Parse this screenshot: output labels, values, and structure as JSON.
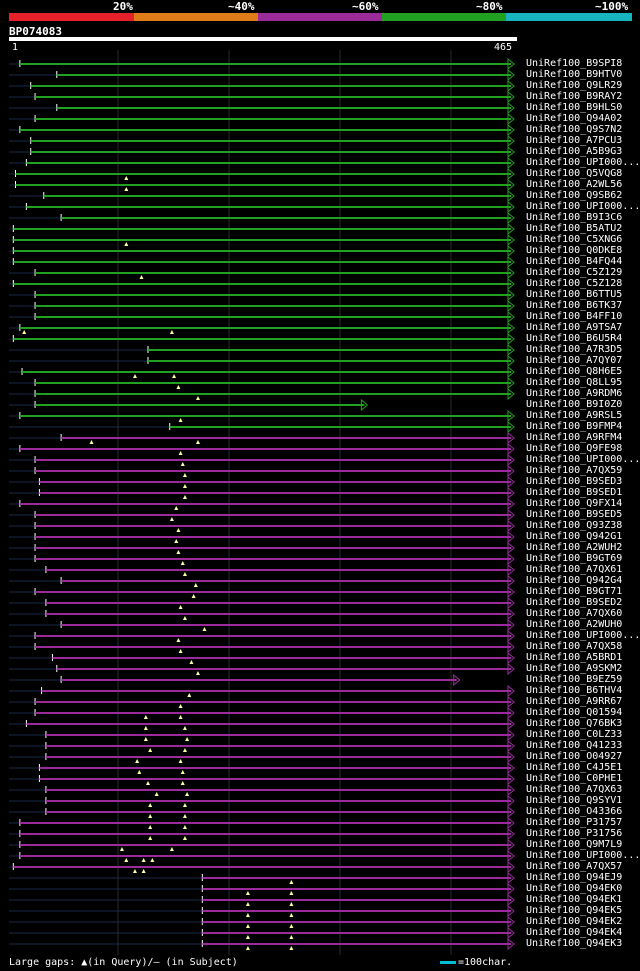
{
  "legend": {
    "labels": [
      "20%",
      "~40%",
      "~60%",
      "~80%",
      "~100%"
    ],
    "colors": [
      "#e8202a",
      "#e07b1a",
      "#9b2a9b",
      "#22a022",
      "#16b5c0"
    ]
  },
  "query": {
    "name": "BP074083",
    "start": "1",
    "end": "465",
    "length": 465
  },
  "hits": [
    {
      "label": "UniRef100_B9SPI8",
      "color": "green",
      "start": 10,
      "end": 465,
      "gaps": []
    },
    {
      "label": "UniRef100_B9HTV0",
      "color": "green",
      "start": 44,
      "end": 465,
      "gaps": []
    },
    {
      "label": "UniRef100_Q9LR29",
      "color": "green",
      "start": 20,
      "end": 465,
      "gaps": []
    },
    {
      "label": "UniRef100_B9RAY2",
      "color": "green",
      "start": 24,
      "end": 465,
      "gaps": []
    },
    {
      "label": "UniRef100_B9HLS0",
      "color": "green",
      "start": 44,
      "end": 465,
      "gaps": []
    },
    {
      "label": "UniRef100_Q94A02",
      "color": "green",
      "start": 24,
      "end": 465,
      "gaps": []
    },
    {
      "label": "UniRef100_Q9S7N2",
      "color": "green",
      "start": 10,
      "end": 465,
      "gaps": []
    },
    {
      "label": "UniRef100_A7PCU3",
      "color": "green",
      "start": 20,
      "end": 465,
      "gaps": []
    },
    {
      "label": "UniRef100_A5B9G3",
      "color": "green",
      "start": 20,
      "end": 465,
      "gaps": []
    },
    {
      "label": "UniRef100_UPI000...",
      "color": "green",
      "start": 16,
      "end": 465,
      "gaps": []
    },
    {
      "label": "UniRef100_Q5VQG8",
      "color": "green",
      "start": 6,
      "end": 465,
      "gaps": [
        108
      ]
    },
    {
      "label": "UniRef100_A2WL56",
      "color": "green",
      "start": 6,
      "end": 465,
      "gaps": [
        108
      ]
    },
    {
      "label": "UniRef100_Q9SB62",
      "color": "green",
      "start": 32,
      "end": 465,
      "gaps": []
    },
    {
      "label": "UniRef100_UPI000...",
      "color": "green",
      "start": 16,
      "end": 465,
      "gaps": []
    },
    {
      "label": "UniRef100_B9I3C6",
      "color": "green",
      "start": 48,
      "end": 465,
      "gaps": []
    },
    {
      "label": "UniRef100_B5ATU2",
      "color": "green",
      "start": 4,
      "end": 465,
      "gaps": []
    },
    {
      "label": "UniRef100_C5XNG6",
      "color": "green",
      "start": 4,
      "end": 465,
      "gaps": [
        108
      ]
    },
    {
      "label": "UniRef100_Q0DKE8",
      "color": "green",
      "start": 4,
      "end": 465,
      "gaps": []
    },
    {
      "label": "UniRef100_B4FQ44",
      "color": "green",
      "start": 4,
      "end": 465,
      "gaps": []
    },
    {
      "label": "UniRef100_C5Z129",
      "color": "green",
      "start": 24,
      "end": 465,
      "gaps": [
        122
      ]
    },
    {
      "label": "UniRef100_C5Z128",
      "color": "green",
      "start": 4,
      "end": 465,
      "gaps": []
    },
    {
      "label": "UniRef100_B6TTU5",
      "color": "green",
      "start": 24,
      "end": 465,
      "gaps": []
    },
    {
      "label": "UniRef100_B6TK37",
      "color": "green",
      "start": 24,
      "end": 465,
      "gaps": []
    },
    {
      "label": "UniRef100_B4FF10",
      "color": "green",
      "start": 24,
      "end": 465,
      "gaps": []
    },
    {
      "label": "UniRef100_A9TSA7",
      "color": "green",
      "start": 10,
      "end": 465,
      "gaps": [
        14,
        150
      ]
    },
    {
      "label": "UniRef100_B6U5R4",
      "color": "green",
      "start": 4,
      "end": 465,
      "gaps": []
    },
    {
      "label": "UniRef100_A7R3D5",
      "color": "green",
      "start": 128,
      "end": 465,
      "gaps": []
    },
    {
      "label": "UniRef100_A7QY07",
      "color": "green",
      "start": 128,
      "end": 465,
      "gaps": []
    },
    {
      "label": "UniRef100_Q8H6E5",
      "color": "green",
      "start": 12,
      "end": 465,
      "gaps": [
        116,
        152
      ]
    },
    {
      "label": "UniRef100_Q8LL95",
      "color": "green",
      "start": 24,
      "end": 465,
      "gaps": [
        156
      ]
    },
    {
      "label": "UniRef100_A9RDM6",
      "color": "green",
      "start": 24,
      "end": 465,
      "gaps": [
        174
      ]
    },
    {
      "label": "UniRef100_B9I0Z0",
      "color": "green",
      "start": 24,
      "end": 330,
      "gaps": []
    },
    {
      "label": "UniRef100_A9RSL5",
      "color": "green",
      "start": 10,
      "end": 465,
      "gaps": [
        158
      ]
    },
    {
      "label": "UniRef100_B9FMP4",
      "color": "green",
      "start": 148,
      "end": 465,
      "gaps": []
    },
    {
      "label": "UniRef100_A9RFM4",
      "color": "magenta",
      "start": 48,
      "end": 465,
      "gaps": [
        76,
        174
      ]
    },
    {
      "label": "UniRef100_Q9FE98",
      "color": "magenta",
      "start": 10,
      "end": 465,
      "gaps": [
        158
      ]
    },
    {
      "label": "UniRef100_UPI000...",
      "color": "magenta",
      "start": 24,
      "end": 465,
      "gaps": [
        160
      ]
    },
    {
      "label": "UniRef100_A7QX59",
      "color": "magenta",
      "start": 24,
      "end": 465,
      "gaps": [
        162
      ]
    },
    {
      "label": "UniRef100_B9SED3",
      "color": "magenta",
      "start": 28,
      "end": 465,
      "gaps": [
        162
      ]
    },
    {
      "label": "UniRef100_B9SED1",
      "color": "magenta",
      "start": 28,
      "end": 465,
      "gaps": [
        162
      ]
    },
    {
      "label": "UniRef100_Q9FX14",
      "color": "magenta",
      "start": 10,
      "end": 465,
      "gaps": [
        154
      ]
    },
    {
      "label": "UniRef100_B9SED5",
      "color": "magenta",
      "start": 24,
      "end": 465,
      "gaps": [
        150
      ]
    },
    {
      "label": "UniRef100_Q93Z38",
      "color": "magenta",
      "start": 24,
      "end": 465,
      "gaps": [
        156
      ]
    },
    {
      "label": "UniRef100_Q942G1",
      "color": "magenta",
      "start": 24,
      "end": 465,
      "gaps": [
        154
      ]
    },
    {
      "label": "UniRef100_A2WUH2",
      "color": "magenta",
      "start": 24,
      "end": 465,
      "gaps": [
        156
      ]
    },
    {
      "label": "UniRef100_B9GT69",
      "color": "magenta",
      "start": 24,
      "end": 465,
      "gaps": [
        160
      ]
    },
    {
      "label": "UniRef100_A7QX61",
      "color": "magenta",
      "start": 34,
      "end": 465,
      "gaps": [
        162
      ]
    },
    {
      "label": "UniRef100_Q942G4",
      "color": "magenta",
      "start": 48,
      "end": 465,
      "gaps": [
        172
      ]
    },
    {
      "label": "UniRef100_B9GT71",
      "color": "magenta",
      "start": 24,
      "end": 465,
      "gaps": [
        170
      ]
    },
    {
      "label": "UniRef100_B9SED2",
      "color": "magenta",
      "start": 34,
      "end": 465,
      "gaps": [
        158
      ]
    },
    {
      "label": "UniRef100_A7QX60",
      "color": "magenta",
      "start": 34,
      "end": 465,
      "gaps": [
        162
      ]
    },
    {
      "label": "UniRef100_A2WUH0",
      "color": "magenta",
      "start": 48,
      "end": 465,
      "gaps": [
        180
      ]
    },
    {
      "label": "UniRef100_UPI000...",
      "color": "magenta",
      "start": 24,
      "end": 465,
      "gaps": [
        156
      ]
    },
    {
      "label": "UniRef100_A7QX58",
      "color": "magenta",
      "start": 24,
      "end": 465,
      "gaps": [
        158
      ]
    },
    {
      "label": "UniRef100_A5BRD1",
      "color": "magenta",
      "start": 40,
      "end": 465,
      "gaps": [
        168
      ]
    },
    {
      "label": "UniRef100_A9SKM2",
      "color": "magenta",
      "start": 44,
      "end": 465,
      "gaps": [
        174
      ]
    },
    {
      "label": "UniRef100_B9EZ59",
      "color": "magenta",
      "start": 48,
      "end": 415,
      "gaps": []
    },
    {
      "label": "UniRef100_B6THV4",
      "color": "magenta",
      "start": 30,
      "end": 465,
      "gaps": [
        166
      ]
    },
    {
      "label": "UniRef100_A9RR67",
      "color": "magenta",
      "start": 24,
      "end": 465,
      "gaps": [
        158
      ]
    },
    {
      "label": "UniRef100_Q01594",
      "color": "magenta",
      "start": 24,
      "end": 465,
      "gaps": [
        126,
        158
      ]
    },
    {
      "label": "UniRef100_Q76BK3",
      "color": "magenta",
      "start": 16,
      "end": 465,
      "gaps": [
        126,
        162
      ]
    },
    {
      "label": "UniRef100_C0LZ33",
      "color": "magenta",
      "start": 34,
      "end": 465,
      "gaps": [
        126,
        164
      ]
    },
    {
      "label": "UniRef100_Q41233",
      "color": "magenta",
      "start": 34,
      "end": 465,
      "gaps": [
        130,
        162
      ]
    },
    {
      "label": "UniRef100_O04927",
      "color": "magenta",
      "start": 34,
      "end": 465,
      "gaps": [
        118,
        158
      ]
    },
    {
      "label": "UniRef100_C4J5E1",
      "color": "magenta",
      "start": 28,
      "end": 465,
      "gaps": [
        120,
        160
      ]
    },
    {
      "label": "UniRef100_C0PHE1",
      "color": "magenta",
      "start": 28,
      "end": 465,
      "gaps": [
        128,
        160
      ]
    },
    {
      "label": "UniRef100_A7QX63",
      "color": "magenta",
      "start": 34,
      "end": 465,
      "gaps": [
        136,
        164
      ]
    },
    {
      "label": "UniRef100_Q9SYV1",
      "color": "magenta",
      "start": 34,
      "end": 465,
      "gaps": [
        130,
        162
      ]
    },
    {
      "label": "UniRef100_O43366",
      "color": "magenta",
      "start": 34,
      "end": 465,
      "gaps": [
        130,
        162
      ]
    },
    {
      "label": "UniRef100_P31757",
      "color": "magenta",
      "start": 10,
      "end": 465,
      "gaps": [
        130,
        162
      ]
    },
    {
      "label": "UniRef100_P31756",
      "color": "magenta",
      "start": 10,
      "end": 465,
      "gaps": [
        130,
        162
      ]
    },
    {
      "label": "UniRef100_Q9M7L9",
      "color": "magenta",
      "start": 10,
      "end": 465,
      "gaps": [
        104,
        150
      ]
    },
    {
      "label": "UniRef100_UPI000...",
      "color": "magenta",
      "start": 10,
      "end": 465,
      "gaps": [
        108,
        124,
        132
      ]
    },
    {
      "label": "UniRef100_A7QX57",
      "color": "magenta",
      "start": 4,
      "end": 465,
      "gaps": [
        116,
        124
      ]
    },
    {
      "label": "UniRef100_Q94EJ9",
      "color": "magenta",
      "start": 178,
      "end": 465,
      "gaps": [
        260
      ]
    },
    {
      "label": "UniRef100_Q94EK0",
      "color": "magenta",
      "start": 178,
      "end": 465,
      "gaps": [
        220,
        260
      ]
    },
    {
      "label": "UniRef100_Q94EK1",
      "color": "magenta",
      "start": 178,
      "end": 465,
      "gaps": [
        220,
        260
      ]
    },
    {
      "label": "UniRef100_Q94EK5",
      "color": "magenta",
      "start": 178,
      "end": 465,
      "gaps": [
        220,
        260
      ]
    },
    {
      "label": "UniRef100_Q94EK2",
      "color": "magenta",
      "start": 178,
      "end": 465,
      "gaps": [
        220,
        260
      ]
    },
    {
      "label": "UniRef100_Q94EK4",
      "color": "magenta",
      "start": 178,
      "end": 465,
      "gaps": [
        220,
        260
      ]
    },
    {
      "label": "UniRef100_Q94EK3",
      "color": "magenta",
      "start": 178,
      "end": 465,
      "gaps": [
        220,
        260
      ]
    }
  ],
  "footer": {
    "gaps_text": "Large gaps: ▲(in Query)/– (in Subject)",
    "scale_text": "=100char."
  },
  "colors": {
    "green": "#22a022",
    "magenta": "#9b2a9b",
    "accent": "#00bcd4",
    "grid": "#2a2a2a"
  }
}
